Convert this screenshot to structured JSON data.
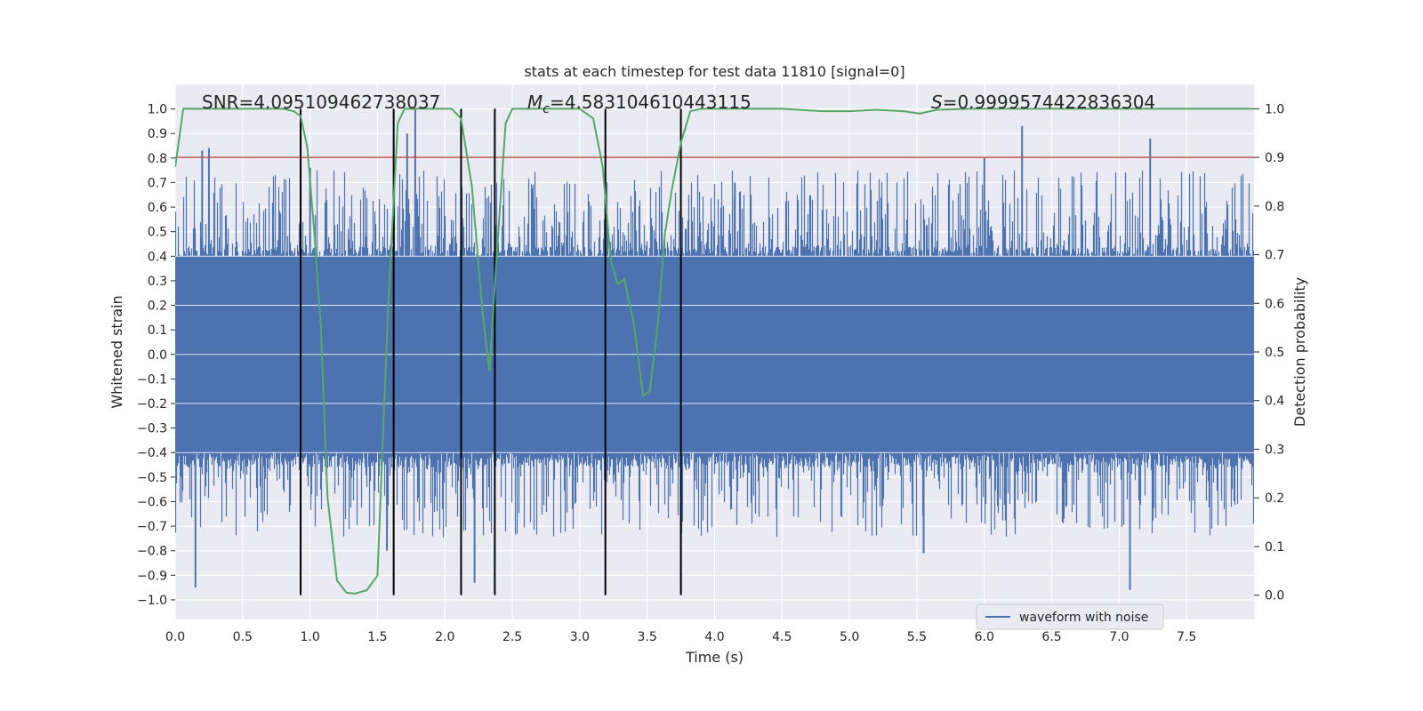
{
  "chart_data": {
    "type": "line",
    "title": "stats at each timestep for test data 11810 [signal=0]",
    "xlabel": "Time (s)",
    "ylabel": "Whitened strain",
    "y2label": "Detection probability",
    "xlim": [
      0.0,
      8.0
    ],
    "ylim": [
      -1.08,
      1.1
    ],
    "y2lim": [
      -0.05,
      1.05
    ],
    "xticks": [
      0.0,
      0.5,
      1.0,
      1.5,
      2.0,
      2.5,
      3.0,
      3.5,
      4.0,
      4.5,
      5.0,
      5.5,
      6.0,
      6.5,
      7.0,
      7.5
    ],
    "xtick_labels": [
      "0.0",
      "0.5",
      "1.0",
      "1.5",
      "2.0",
      "2.5",
      "3.0",
      "3.5",
      "4.0",
      "4.5",
      "5.0",
      "5.5",
      "6.0",
      "6.5",
      "7.0",
      "7.5"
    ],
    "yticks": [
      1.0,
      0.9,
      0.8,
      0.7,
      0.6,
      0.5,
      0.4,
      0.3,
      0.2,
      0.1,
      0.0,
      -0.1,
      -0.2,
      -0.3,
      -0.4,
      -0.5,
      -0.6,
      -0.7,
      -0.8,
      -0.9,
      -1.0
    ],
    "ytick_labels": [
      "1.0",
      "0.9",
      "0.8",
      "0.7",
      "0.6",
      "0.5",
      "0.4",
      "0.3",
      "0.2",
      "0.1",
      "0.0",
      "−0.1",
      "−0.2",
      "−0.3",
      "−0.4",
      "−0.5",
      "−0.6",
      "−0.7",
      "−0.8",
      "−0.9",
      "−1.0"
    ],
    "y2ticks": [
      1.0,
      0.9,
      0.8,
      0.7,
      0.6,
      0.5,
      0.4,
      0.3,
      0.2,
      0.1,
      0.0
    ],
    "y2tick_labels": [
      "1.0",
      "0.9",
      "0.8",
      "0.7",
      "0.6",
      "0.5",
      "0.4",
      "0.3",
      "0.2",
      "0.1",
      "0.0"
    ],
    "annotations": {
      "snr": "SNR=4.095109462738037",
      "mc_symbol": "M",
      "mc_sub": "c",
      "mc_value": "=4.583104610443115",
      "s_symbol": "S",
      "s_value": "=0.9999574422836304"
    },
    "legend": {
      "label": "waveform with noise",
      "position": "lower-right"
    },
    "colors": {
      "background": "#eaeaf2",
      "grid": "#ffffff",
      "waveform": "#4c72b0",
      "probability": "#55a868",
      "threshold": "#c44e52",
      "marker": "#000000"
    },
    "waveform": {
      "name": "waveform with noise",
      "duration_s": 8.0,
      "core_range": [
        -0.38,
        0.4
      ],
      "peaks": [
        {
          "t": 0.2,
          "v": 0.83
        },
        {
          "t": 0.25,
          "v": 0.84
        },
        {
          "t": 0.15,
          "v": -0.95
        },
        {
          "t": 1.78,
          "v": 1.0
        },
        {
          "t": 1.72,
          "v": 0.9
        },
        {
          "t": 1.0,
          "v": 0.76
        },
        {
          "t": 6.28,
          "v": 0.93
        },
        {
          "t": 7.23,
          "v": 0.88
        },
        {
          "t": 7.08,
          "v": -0.96
        },
        {
          "t": 2.22,
          "v": -0.93
        },
        {
          "t": 1.57,
          "v": -0.8
        },
        {
          "t": 3.75,
          "v": -0.98
        },
        {
          "t": 6.0,
          "v": 0.8
        },
        {
          "t": 4.15,
          "v": 0.7
        },
        {
          "t": 5.55,
          "v": -0.81
        }
      ]
    },
    "detection_probability": {
      "name": "detection probability",
      "t": [
        0.0,
        0.06,
        0.2,
        0.4,
        0.6,
        0.8,
        0.88,
        0.93,
        0.98,
        1.03,
        1.08,
        1.13,
        1.2,
        1.27,
        1.33,
        1.42,
        1.5,
        1.58,
        1.65,
        1.7,
        1.78,
        1.9,
        2.05,
        2.12,
        2.2,
        2.28,
        2.33,
        2.38,
        2.45,
        2.5,
        2.6,
        2.8,
        3.0,
        3.1,
        3.17,
        3.23,
        3.28,
        3.33,
        3.4,
        3.47,
        3.52,
        3.58,
        3.63,
        3.68,
        3.75,
        3.82,
        3.9,
        4.2,
        4.5,
        4.8,
        5.0,
        5.2,
        5.4,
        5.52,
        5.65,
        5.9,
        6.5,
        7.0,
        7.5,
        8.0
      ],
      "p": [
        0.88,
        1.0,
        1.0,
        1.0,
        1.0,
        1.0,
        0.995,
        0.985,
        0.92,
        0.75,
        0.55,
        0.2,
        0.03,
        0.005,
        0.003,
        0.01,
        0.04,
        0.6,
        0.97,
        1.0,
        1.0,
        1.0,
        1.0,
        0.98,
        0.84,
        0.58,
        0.46,
        0.68,
        0.97,
        1.0,
        1.0,
        1.0,
        1.0,
        0.98,
        0.88,
        0.69,
        0.64,
        0.65,
        0.56,
        0.41,
        0.42,
        0.56,
        0.74,
        0.83,
        0.93,
        0.995,
        1.0,
        1.0,
        1.0,
        0.995,
        0.995,
        0.998,
        0.995,
        0.99,
        0.998,
        1.0,
        1.0,
        1.0,
        1.0,
        1.0
      ]
    },
    "threshold": {
      "value": 0.9,
      "axis": "y2"
    },
    "event_markers": {
      "times": [
        0.93,
        1.62,
        2.12,
        2.37,
        3.19,
        3.75
      ],
      "y2_range": [
        0.0,
        1.0
      ]
    }
  }
}
